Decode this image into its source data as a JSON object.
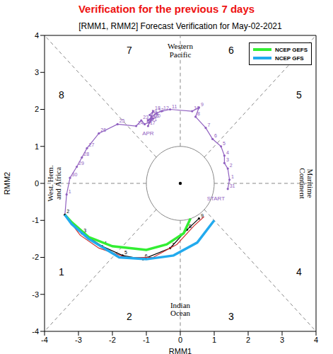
{
  "chart_data": {
    "type": "line",
    "title": "[RMM1, RMM2] Forecast Verification for May-02-2021",
    "subtitle": "Verification for the previous 7 days",
    "x_label": "RMM1",
    "y_label": "RMM2",
    "xlim": [
      -4,
      4
    ],
    "ylim": [
      -4,
      4
    ],
    "xticks": [
      -4,
      -3,
      -2,
      -1,
      0,
      1,
      2,
      3,
      4
    ],
    "yticks": [
      -4,
      -3,
      -2,
      -1,
      0,
      1,
      2,
      3,
      4
    ],
    "grid": false,
    "legend": "upper right",
    "circle_radius": 1,
    "phase_labels": [
      "1",
      "2",
      "3",
      "4",
      "5",
      "6",
      "7",
      "8"
    ],
    "region_labels": {
      "top": [
        "Western",
        "Pacific"
      ],
      "right": [
        "Maritime",
        "Continent"
      ],
      "bottom": [
        "Indian",
        "Ocean"
      ],
      "left": [
        "West. Hem.",
        "and Africa"
      ]
    },
    "annotations": [
      {
        "text": "START",
        "x": 1.05,
        "y": -0.4
      },
      {
        "text": "APR",
        "x": -0.95,
        "y": 1.35
      }
    ],
    "series": [
      {
        "color": "#9060c0",
        "marker": "circle",
        "line_style": "solid",
        "x": [
          1.4,
          1.45,
          1.4,
          1.3,
          1.3,
          1.2,
          0.95,
          0.75,
          0.45,
          0.55,
          0.35,
          -0.3,
          -0.55,
          -0.7,
          -0.85,
          -0.95,
          -0.85,
          -0.95,
          -0.8,
          -0.9,
          -0.8,
          -0.9,
          -1.05,
          -1.15,
          -1.3,
          -1.85,
          -2.4,
          -2.75,
          -2.9,
          -3.05,
          -3.25,
          -3.35,
          -3.4
        ],
        "y": [
          -0.15,
          0.1,
          0.4,
          0.55,
          0.75,
          1.0,
          1.2,
          1.5,
          1.8,
          2.05,
          1.95,
          2.0,
          1.95,
          1.9,
          1.8,
          1.7,
          1.75,
          1.55,
          1.95,
          1.85,
          1.75,
          1.65,
          1.6,
          1.7,
          1.55,
          1.6,
          1.35,
          0.95,
          0.7,
          0.45,
          0.15,
          -0.3,
          -0.85
        ],
        "labels": [
          "31",
          "1",
          "2",
          "3",
          "4",
          "5",
          "6",
          "7",
          "8",
          "9",
          "10",
          "11",
          "12",
          "13",
          "14",
          "15",
          "16",
          "17",
          "18",
          "19",
          "20",
          "21",
          "22",
          "23",
          "24",
          "25",
          "26",
          "27",
          "28",
          "29",
          "30",
          "1",
          null
        ]
      },
      {
        "color": "#000000",
        "marker": "circle",
        "line_style": "solid",
        "x": [
          -3.4,
          -2.9,
          -2.3,
          -1.7,
          -1.1,
          -0.3,
          0.2,
          0.55
        ],
        "y": [
          -0.85,
          -1.35,
          -1.7,
          -1.95,
          -2.05,
          -1.75,
          -1.25,
          -0.95
        ],
        "labels": [
          "2",
          "3",
          "4",
          "5",
          "6",
          "7",
          "8",
          "9"
        ]
      },
      {
        "color": "#d03030",
        "marker": "none",
        "line_style": "solid",
        "x": [
          -3.4,
          -2.95,
          -2.4,
          -1.6,
          -0.8,
          -0.1,
          0.4,
          0.7
        ],
        "y": [
          -0.85,
          -1.4,
          -1.75,
          -2.0,
          -2.0,
          -1.65,
          -1.15,
          -0.9
        ]
      },
      {
        "name": "NCEP GEFS",
        "color": "#33ee33",
        "marker": "none",
        "line_style": "solid",
        "x": [
          -3.4,
          -3.2,
          -2.7,
          -2.0,
          -1.0,
          -0.4,
          0.1,
          0.3
        ],
        "y": [
          -0.85,
          -1.05,
          -1.45,
          -1.7,
          -1.8,
          -1.65,
          -1.35,
          -0.95
        ]
      },
      {
        "name": "NCEP GFS",
        "color": "#22aaee",
        "marker": "none",
        "line_style": "solid",
        "x": [
          -3.4,
          -3.2,
          -2.7,
          -1.8,
          -1.0,
          -0.2,
          0.5,
          1.0
        ],
        "y": [
          -0.85,
          -1.1,
          -1.5,
          -2.0,
          -2.05,
          -1.95,
          -1.6,
          -1.0
        ]
      }
    ]
  }
}
